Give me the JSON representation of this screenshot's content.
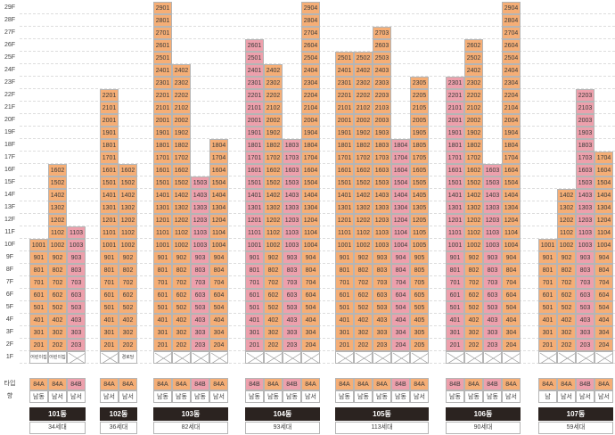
{
  "floor_labels": [
    "1F",
    "2F",
    "3F",
    "4F",
    "5F",
    "6F",
    "7F",
    "8F",
    "9F",
    "10F",
    "11F",
    "12F",
    "13F",
    "14F",
    "15F",
    "16F",
    "17F",
    "18F",
    "19F",
    "20F",
    "21F",
    "22F",
    "23F",
    "24F",
    "25F",
    "26F",
    "27F",
    "28F",
    "29F"
  ],
  "row_labels": {
    "type": "타입",
    "direction": "향"
  },
  "colors": {
    "orange": "#f5ae76",
    "pink": "#eda0ac",
    "dong_bar": "#2b2320"
  },
  "buildings": [
    {
      "name": "101동",
      "count": "34세대",
      "lines": [
        {
          "num": 1,
          "top": 10,
          "ground": "어린이집",
          "type": "84A",
          "dir": "남동",
          "color": "orange"
        },
        {
          "num": 2,
          "top": 16,
          "ground": "어린이집",
          "type": "84A",
          "dir": "남서",
          "color": "orange"
        },
        {
          "num": 3,
          "top": 11,
          "ground": "X",
          "type": "84B",
          "dir": "남서",
          "color": "pink"
        }
      ]
    },
    {
      "name": "102동",
      "count": "36세대",
      "lines": [
        {
          "num": 1,
          "top": 22,
          "ground": "X",
          "type": "84A",
          "dir": "남서",
          "color": "orange"
        },
        {
          "num": 2,
          "top": 16,
          "ground": "경로당",
          "type": "84A",
          "dir": "남서",
          "color": "orange"
        }
      ]
    },
    {
      "name": "103동",
      "count": "82세대",
      "lines": [
        {
          "num": 1,
          "top": 29,
          "ground": "X",
          "type": "84A",
          "dir": "남동",
          "color": "orange"
        },
        {
          "num": 2,
          "top": 24,
          "ground": "X",
          "type": "84A",
          "dir": "남동",
          "color": "orange"
        },
        {
          "num": 3,
          "top": 15,
          "ground": "X",
          "type": "84B",
          "dir": "남동",
          "color": "pink"
        },
        {
          "num": 4,
          "top": 18,
          "ground": "X",
          "type": "84A",
          "dir": "남서",
          "color": "orange"
        }
      ]
    },
    {
      "name": "104동",
      "count": "93세대",
      "lines": [
        {
          "num": 1,
          "top": 26,
          "ground": "X",
          "type": "84B",
          "dir": "남동",
          "color": "pink"
        },
        {
          "num": 2,
          "top": 24,
          "ground": "X",
          "type": "84A",
          "dir": "남동",
          "color": "orange"
        },
        {
          "num": 3,
          "top": 18,
          "ground": "X",
          "type": "84B",
          "dir": "남동",
          "color": "pink"
        },
        {
          "num": 4,
          "top": 29,
          "ground": "X",
          "type": "84A",
          "dir": "남서",
          "color": "orange"
        }
      ]
    },
    {
      "name": "105동",
      "count": "113세대",
      "lines": [
        {
          "num": 1,
          "top": 25,
          "ground": "X",
          "type": "84A",
          "dir": "남동",
          "color": "orange"
        },
        {
          "num": 2,
          "top": 25,
          "ground": "X",
          "type": "84A",
          "dir": "남동",
          "color": "orange"
        },
        {
          "num": 3,
          "top": 27,
          "ground": "X",
          "type": "84A",
          "dir": "남동",
          "color": "orange"
        },
        {
          "num": 4,
          "top": 18,
          "ground": "X",
          "type": "84B",
          "dir": "남동",
          "color": "pink"
        },
        {
          "num": 5,
          "top": 23,
          "ground": "X",
          "type": "84A",
          "dir": "남서",
          "color": "orange"
        }
      ]
    },
    {
      "name": "106동",
      "count": "90세대",
      "lines": [
        {
          "num": 1,
          "top": 23,
          "ground": "X",
          "type": "84B",
          "dir": "남동",
          "color": "pink"
        },
        {
          "num": 2,
          "top": 26,
          "ground": "X",
          "type": "84A",
          "dir": "남동",
          "color": "orange"
        },
        {
          "num": 3,
          "top": 16,
          "ground": "X",
          "type": "84B",
          "dir": "남동",
          "color": "pink"
        },
        {
          "num": 4,
          "top": 29,
          "ground": "X",
          "type": "84A",
          "dir": "남서",
          "color": "orange"
        }
      ]
    },
    {
      "name": "107동",
      "count": "59세대",
      "lines": [
        {
          "num": 1,
          "top": 10,
          "ground": "X",
          "type": "84A",
          "dir": "남",
          "color": "orange"
        },
        {
          "num": 2,
          "top": 14,
          "ground": "X",
          "type": "84A",
          "dir": "남서",
          "color": "orange"
        },
        {
          "num": 3,
          "top": 22,
          "ground": "X",
          "type": "84B",
          "dir": "남서",
          "color": "pink"
        },
        {
          "num": 4,
          "top": 17,
          "ground": "X",
          "type": "84A",
          "dir": "남서",
          "color": "orange"
        }
      ]
    }
  ]
}
